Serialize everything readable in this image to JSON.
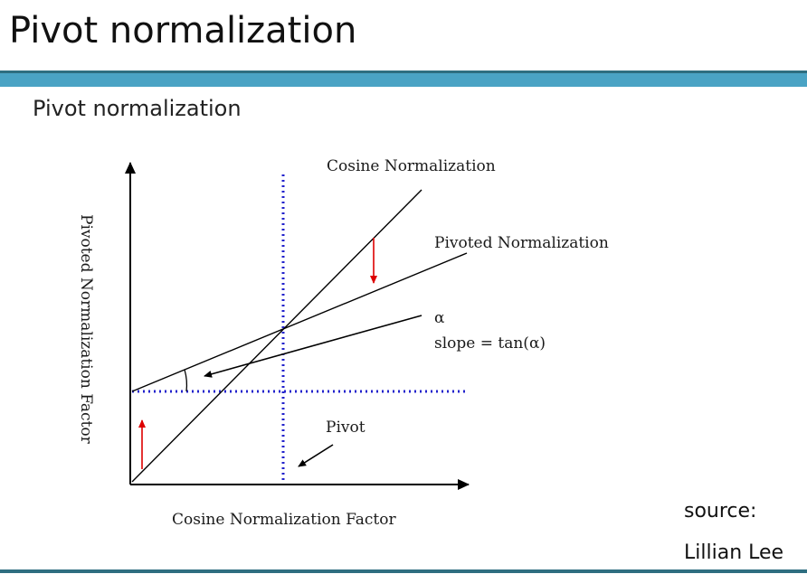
{
  "slide": {
    "title": "Pivot normalization"
  },
  "figure": {
    "heading": "Pivot normalization",
    "labels": {
      "cosine_line": "Cosine Normalization",
      "pivoted_line": "Pivoted Normalization",
      "alpha": "α",
      "slope": "slope = tan(α)",
      "pivot": "Pivot",
      "x_axis": "Cosine Normalization Factor",
      "y_axis": "Pivoted Normalization Factor"
    },
    "colors": {
      "axis": "#000000",
      "guide_lines": "#2222cc",
      "shift_arrows": "#dd0000"
    }
  },
  "source": {
    "line1": "source:",
    "line2": "Lillian Lee"
  }
}
